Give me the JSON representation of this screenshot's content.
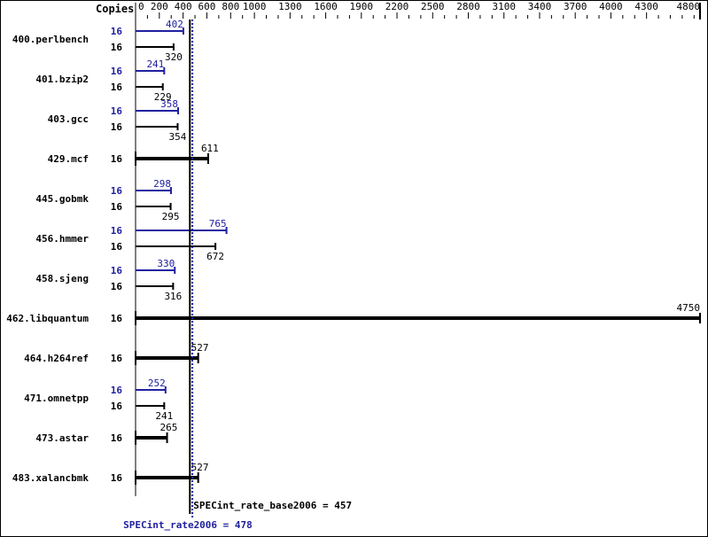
{
  "chart_data": {
    "type": "bar",
    "orientation": "horizontal",
    "copies_header": "Copies",
    "xlim": [
      0,
      4800
    ],
    "ticks": [
      0,
      200,
      400,
      600,
      800,
      1000,
      1300,
      1600,
      1900,
      2200,
      2500,
      2800,
      3100,
      3400,
      3700,
      4000,
      4300,
      4800
    ],
    "colors": {
      "peak": "#2020a0",
      "base": "#000000"
    },
    "benchmarks": [
      {
        "name": "400.perlbench",
        "peak_copies": "16",
        "peak": 402,
        "base_copies": "16",
        "base": 320
      },
      {
        "name": "401.bzip2",
        "peak_copies": "16",
        "peak": 241,
        "base_copies": "16",
        "base": 229
      },
      {
        "name": "403.gcc",
        "peak_copies": "16",
        "peak": 358,
        "base_copies": "16",
        "base": 354
      },
      {
        "name": "429.mcf",
        "base_copies": "16",
        "base": 611
      },
      {
        "name": "445.gobmk",
        "peak_copies": "16",
        "peak": 298,
        "base_copies": "16",
        "base": 295
      },
      {
        "name": "456.hmmer",
        "peak_copies": "16",
        "peak": 765,
        "base_copies": "16",
        "base": 672
      },
      {
        "name": "458.sjeng",
        "peak_copies": "16",
        "peak": 330,
        "base_copies": "16",
        "base": 316
      },
      {
        "name": "462.libquantum",
        "base_copies": "16",
        "base": 4750
      },
      {
        "name": "464.h264ref",
        "base_copies": "16",
        "base": 527
      },
      {
        "name": "471.omnetpp",
        "peak_copies": "16",
        "peak": 252,
        "base_copies": "16",
        "base": 241
      },
      {
        "name": "473.astar",
        "base_copies": "16",
        "base": 265
      },
      {
        "name": "483.xalancbmk",
        "base_copies": "16",
        "base": 527
      }
    ],
    "base_metric": {
      "label": "SPECint_rate_base2006 = 457",
      "value": 457
    },
    "peak_metric": {
      "label": "SPECint_rate2006 = 478",
      "value": 478
    }
  }
}
